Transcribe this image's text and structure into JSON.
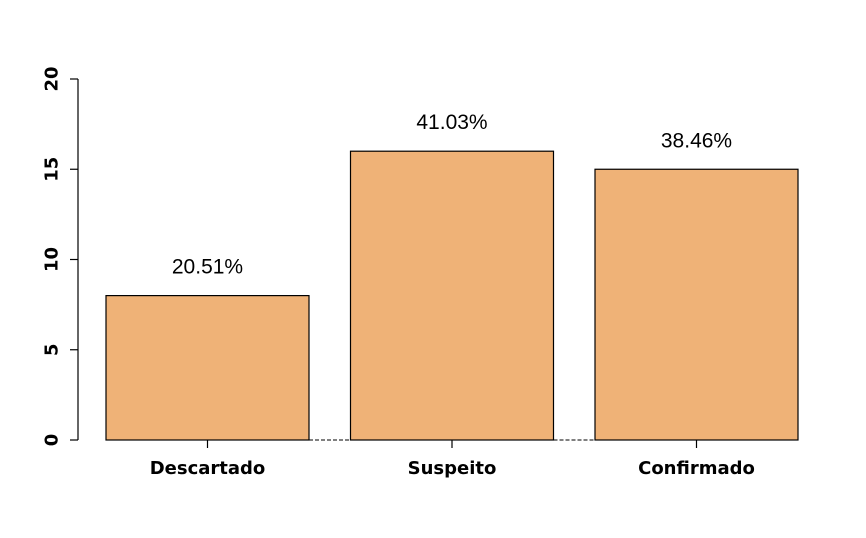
{
  "chart_data": {
    "type": "bar",
    "categories": [
      "Descartado",
      "Suspeito",
      "Confirmado"
    ],
    "values": [
      8,
      16,
      15
    ],
    "data_labels": [
      "20.51%",
      "41.03%",
      "38.46%"
    ],
    "title": "",
    "xlabel": "",
    "ylabel": "",
    "ylim": [
      0,
      20
    ],
    "yticks": [
      0,
      5,
      10,
      15,
      20
    ],
    "bar_color": "#EFB277",
    "grid": false,
    "legend": "none"
  }
}
